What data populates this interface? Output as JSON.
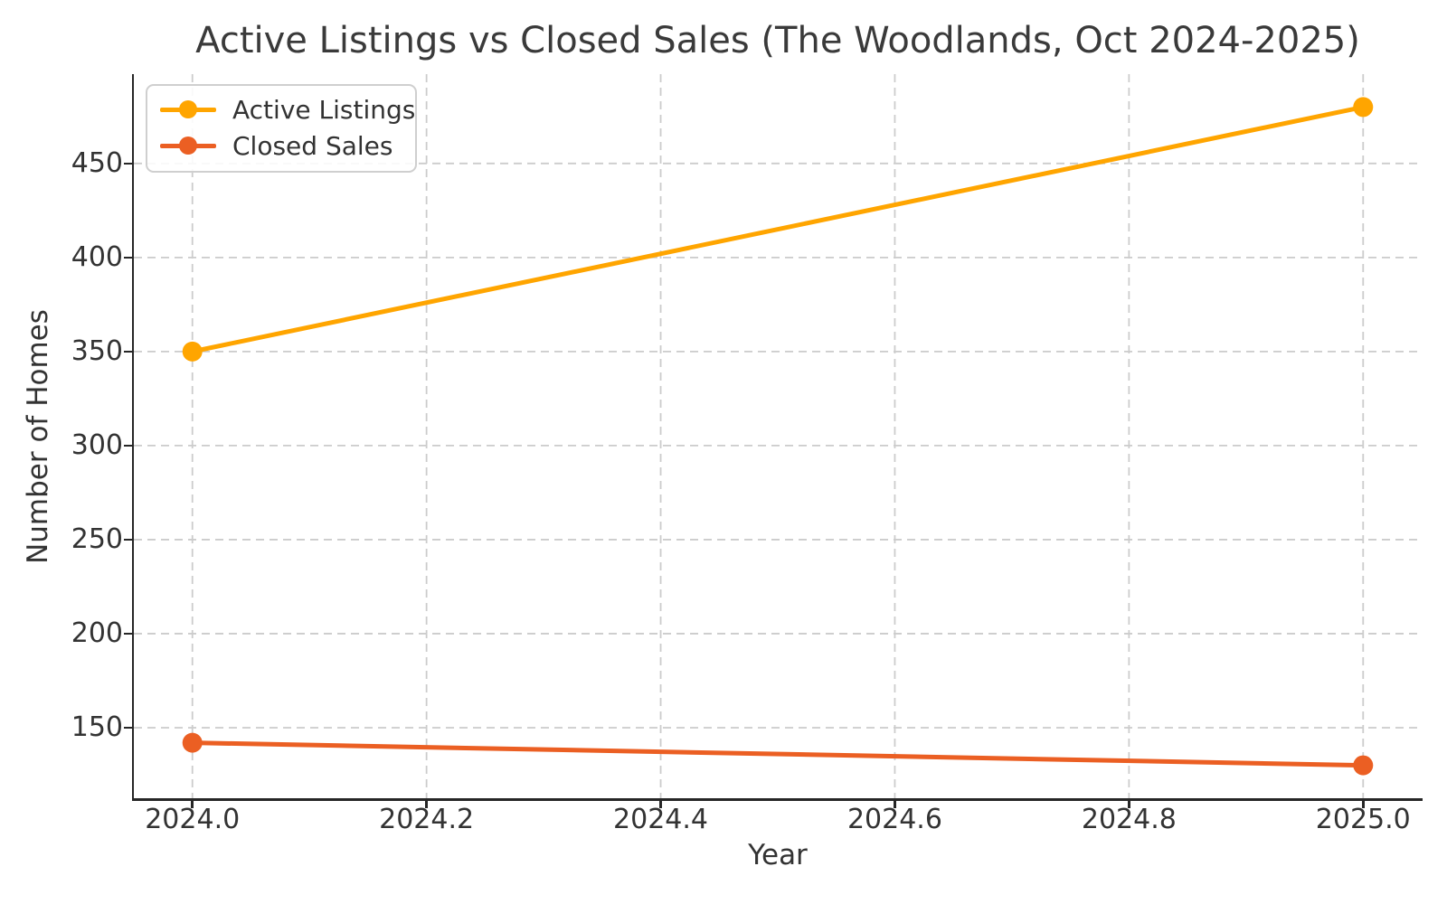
{
  "chart_data": {
    "type": "line",
    "title": "Active Listings vs Closed Sales (The Woodlands, Oct 2024-2025)",
    "xlabel": "Year",
    "ylabel": "Number of Homes",
    "x": [
      2024.0,
      2025.0
    ],
    "series": [
      {
        "name": "Active Listings",
        "values": [
          350,
          480
        ],
        "color": "#FFA500"
      },
      {
        "name": "Closed Sales",
        "values": [
          142,
          130
        ],
        "color": "#EB5F23"
      }
    ],
    "xlim": [
      2023.95,
      2025.05
    ],
    "ylim": [
      112.5,
      497.5
    ],
    "xticks": [
      2024.0,
      2024.2,
      2024.4,
      2024.6,
      2024.8,
      2025.0
    ],
    "xtick_labels": [
      "2024.0",
      "2024.2",
      "2024.4",
      "2024.6",
      "2024.8",
      "2025.0"
    ],
    "yticks": [
      150,
      200,
      250,
      300,
      350,
      400,
      450
    ],
    "ytick_labels": [
      "150",
      "200",
      "250",
      "300",
      "350",
      "400",
      "450"
    ],
    "grid": true,
    "grid_style": "dashed",
    "legend_position": "upper-left",
    "marker": "circle",
    "line_width": 5,
    "marker_radius": 11
  },
  "colors": {
    "background": "#ffffff",
    "grid": "#cccccc",
    "spine": "#262626",
    "text": "#333333",
    "title": "#3a3a3a",
    "legend_border": "#cfcfcf"
  }
}
